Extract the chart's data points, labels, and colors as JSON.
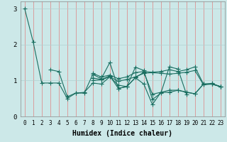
{
  "xlabel": "Humidex (Indice chaleur)",
  "xlim": [
    -0.5,
    23.5
  ],
  "ylim": [
    0,
    3.2
  ],
  "yticks": [
    0,
    1,
    2,
    3
  ],
  "xticks": [
    0,
    1,
    2,
    3,
    4,
    5,
    6,
    7,
    8,
    9,
    10,
    11,
    12,
    13,
    14,
    15,
    16,
    17,
    18,
    19,
    20,
    21,
    22,
    23
  ],
  "background_color": "#cce8e8",
  "grid_color_vertical": "#e08080",
  "grid_color_horizontal": "#b0d0d0",
  "line_color": "#1a6e60",
  "series": [
    [
      3.0,
      2.07,
      0.93,
      0.93,
      0.93,
      0.5,
      0.65,
      0.67,
      0.93,
      0.9,
      1.1,
      0.87,
      0.83,
      1.08,
      0.9,
      0.33,
      0.67,
      0.67,
      0.73,
      0.67,
      0.63,
      0.9,
      0.9,
      0.83
    ],
    [
      null,
      null,
      null,
      1.3,
      1.25,
      0.55,
      0.65,
      0.65,
      1.17,
      1.05,
      1.5,
      0.78,
      0.83,
      1.37,
      1.28,
      0.47,
      0.65,
      1.38,
      1.32,
      0.62,
      null,
      null,
      null,
      null
    ],
    [
      null,
      null,
      null,
      null,
      null,
      null,
      null,
      null,
      1.2,
      1.1,
      1.15,
      1.05,
      1.1,
      1.22,
      1.25,
      1.23,
      1.25,
      1.3,
      1.25,
      1.3,
      1.38,
      0.9,
      0.92,
      0.83
    ],
    [
      null,
      null,
      null,
      null,
      null,
      null,
      null,
      null,
      1.07,
      1.03,
      1.13,
      0.78,
      0.83,
      1.08,
      1.23,
      0.62,
      0.67,
      0.73,
      0.73,
      0.68,
      0.63,
      0.9,
      0.9,
      0.83
    ],
    [
      null,
      null,
      null,
      null,
      null,
      null,
      null,
      null,
      1.0,
      1.02,
      1.1,
      0.98,
      1.03,
      1.1,
      1.2,
      1.22,
      1.2,
      1.18,
      1.2,
      1.23,
      1.28,
      0.88,
      0.9,
      0.83
    ]
  ]
}
